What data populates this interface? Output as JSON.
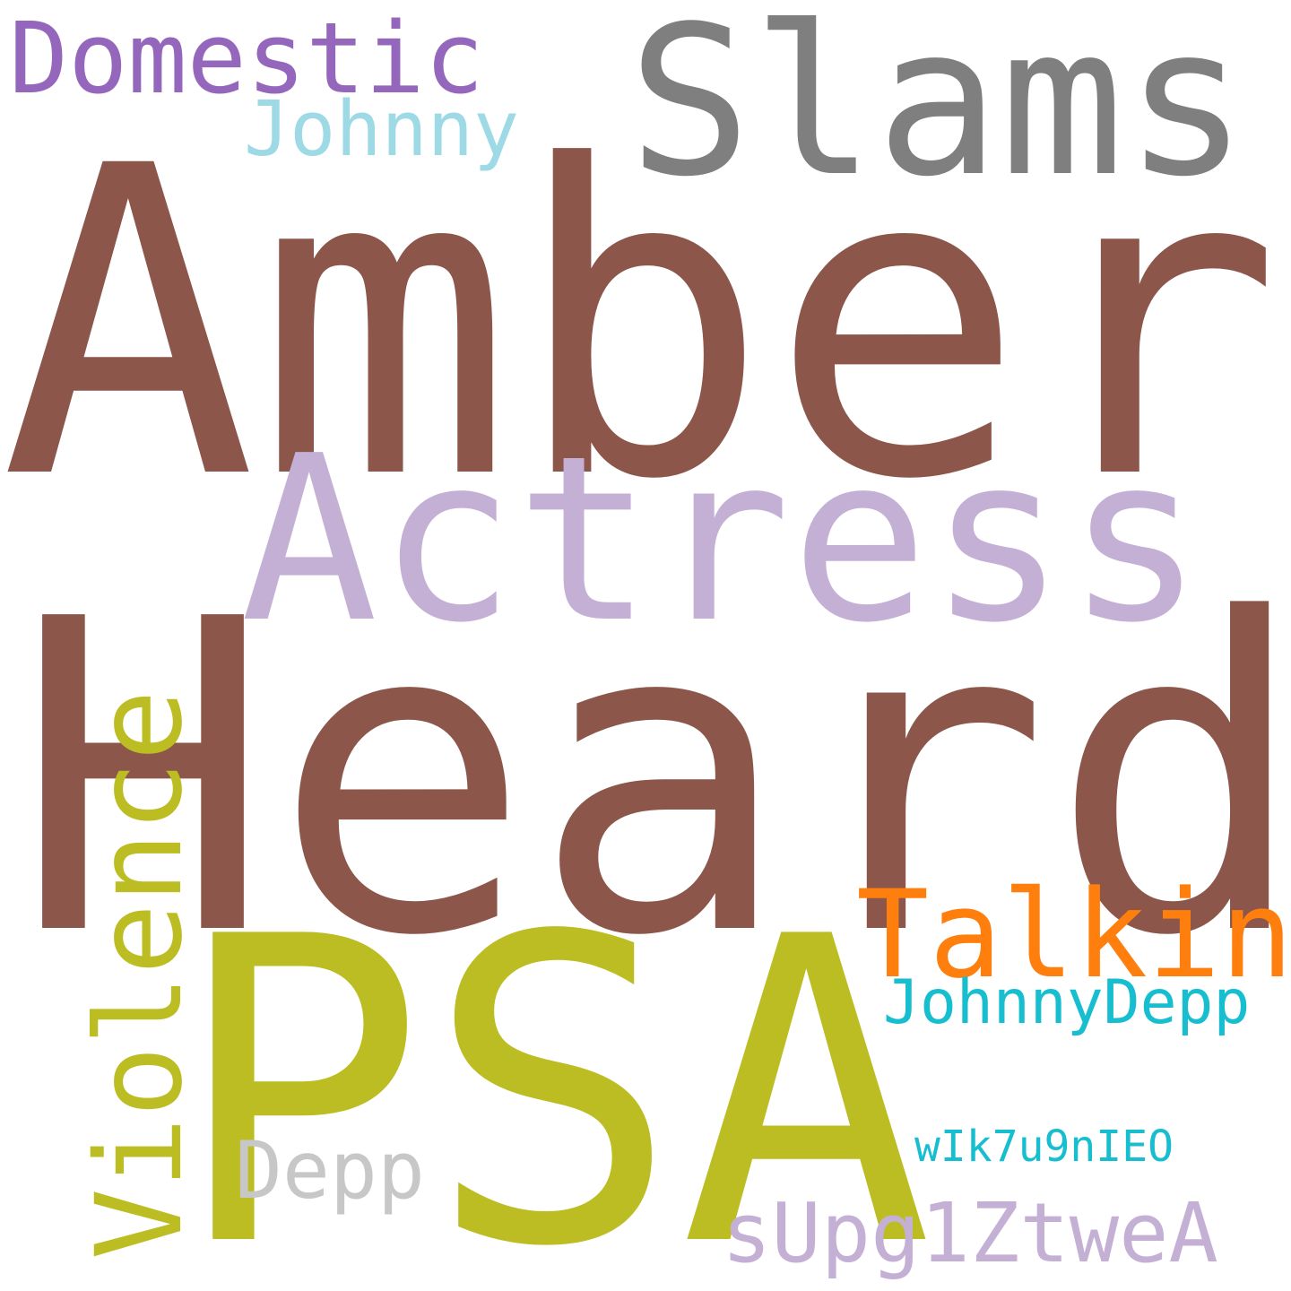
{
  "word_cloud": {
    "background": "#ffffff",
    "words": [
      {
        "id": "amber",
        "text": "Amber",
        "color": "#8c564b",
        "orientation": "horizontal"
      },
      {
        "id": "heard",
        "text": "Heard",
        "color": "#8c564b",
        "orientation": "horizontal"
      },
      {
        "id": "psa",
        "text": "PSA",
        "color": "#bcbd22",
        "orientation": "horizontal"
      },
      {
        "id": "actress",
        "text": "Actress",
        "color": "#c5b0d5",
        "orientation": "horizontal"
      },
      {
        "id": "slams",
        "text": "Slams",
        "color": "#7f7f7f",
        "orientation": "horizontal"
      },
      {
        "id": "domestic",
        "text": "Domestic",
        "color": "#9467bd",
        "orientation": "horizontal"
      },
      {
        "id": "johnny",
        "text": "Johnny",
        "color": "#9edae5",
        "orientation": "horizontal"
      },
      {
        "id": "violence",
        "text": "Violence",
        "color": "#bcbd22",
        "orientation": "vertical"
      },
      {
        "id": "talking",
        "text": "Talking",
        "color": "#ff7f0e",
        "orientation": "horizontal"
      },
      {
        "id": "johnnydepp",
        "text": "JohnnyDepp",
        "color": "#17becf",
        "orientation": "horizontal"
      },
      {
        "id": "wik",
        "text": "wIk7u9nIEO",
        "color": "#17becf",
        "orientation": "horizontal"
      },
      {
        "id": "supg",
        "text": "sUpg1ZtweA",
        "color": "#c5b0d5",
        "orientation": "horizontal"
      },
      {
        "id": "depp",
        "text": "Depp",
        "color": "#c7c7c7",
        "orientation": "horizontal"
      }
    ]
  }
}
